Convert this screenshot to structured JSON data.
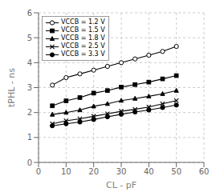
{
  "chart_data": {
    "type": "line",
    "xlabel": "CL - pF",
    "ylabel": "tPHL - ns",
    "x": [
      5,
      10,
      15,
      20,
      25,
      30,
      35,
      40,
      45,
      50
    ],
    "xlim": [
      0,
      60
    ],
    "ylim": [
      0,
      6
    ],
    "xticks": [
      0,
      10,
      20,
      30,
      40,
      50,
      60
    ],
    "yticks": [
      0,
      1,
      2,
      3,
      4,
      5,
      6
    ],
    "grid": true,
    "legend": "upper left",
    "series": [
      {
        "name": "VCCB = 1.2 V",
        "color": "black",
        "marker": "circle-open",
        "values": [
          3.1,
          3.4,
          3.55,
          3.7,
          3.85,
          4.0,
          4.15,
          4.3,
          4.45,
          4.65
        ]
      },
      {
        "name": "VCCB = 1.5 V",
        "color": "black",
        "marker": "square",
        "values": [
          2.27,
          2.47,
          2.6,
          2.78,
          2.88,
          3.02,
          3.12,
          3.22,
          3.35,
          3.48
        ]
      },
      {
        "name": "VCCB = 1.8 V",
        "color": "black",
        "marker": "triangle",
        "values": [
          1.92,
          2.0,
          2.1,
          2.25,
          2.35,
          2.48,
          2.56,
          2.65,
          2.75,
          2.88
        ]
      },
      {
        "name": "VCCB = 2.5 V",
        "color": "black",
        "marker": "x",
        "values": [
          1.55,
          1.67,
          1.75,
          1.85,
          1.95,
          2.05,
          2.13,
          2.22,
          2.35,
          2.48
        ]
      },
      {
        "name": "VCCB = 3.3 V",
        "color": "black",
        "marker": "circle",
        "values": [
          1.47,
          1.55,
          1.62,
          1.72,
          1.83,
          1.93,
          2.02,
          2.1,
          2.2,
          2.3
        ]
      }
    ]
  }
}
